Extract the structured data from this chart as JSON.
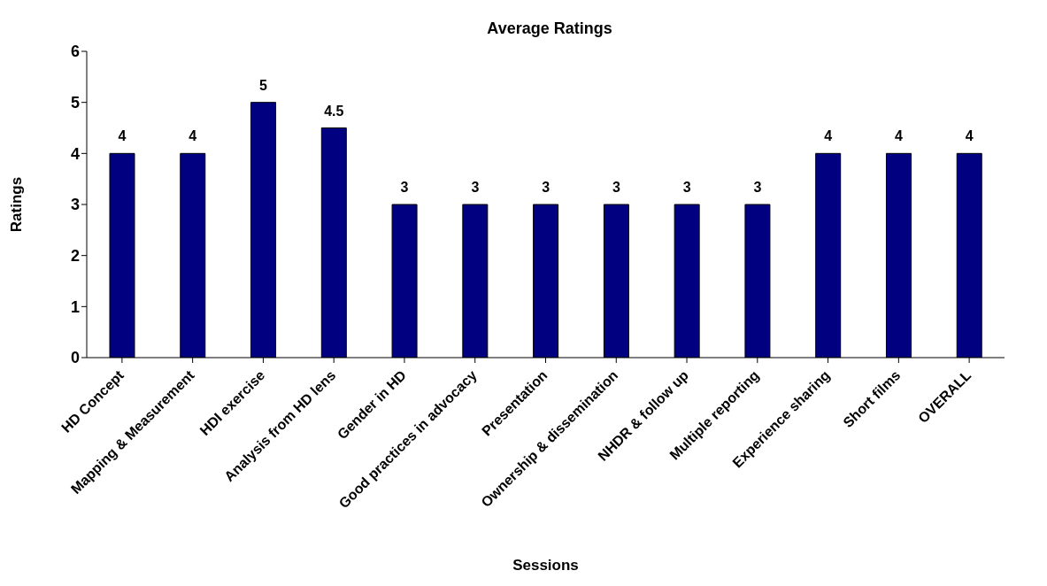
{
  "chart_data": {
    "type": "bar",
    "title": "Average Ratings",
    "xlabel": "Sessions",
    "ylabel": "Ratings",
    "categories": [
      "HD Concept",
      "Mapping & Measurement",
      "HDI exercise",
      "Analysis from HD lens",
      "Gender in HD",
      "Good practices in advocacy",
      "Presentation",
      "Ownership & dissemination",
      "NHDR & follow up",
      "Multiple reporting",
      "Experience sharing",
      "Short films",
      "OVERALL"
    ],
    "values": [
      4,
      4,
      5,
      4.5,
      3,
      3,
      3,
      3,
      3,
      3,
      4,
      4,
      4
    ],
    "color": "#000080",
    "ylim": [
      0,
      6
    ],
    "yticks": [
      0,
      1,
      2,
      3,
      4,
      5,
      6
    ],
    "grid": false,
    "legend": false,
    "data_labels": true
  }
}
